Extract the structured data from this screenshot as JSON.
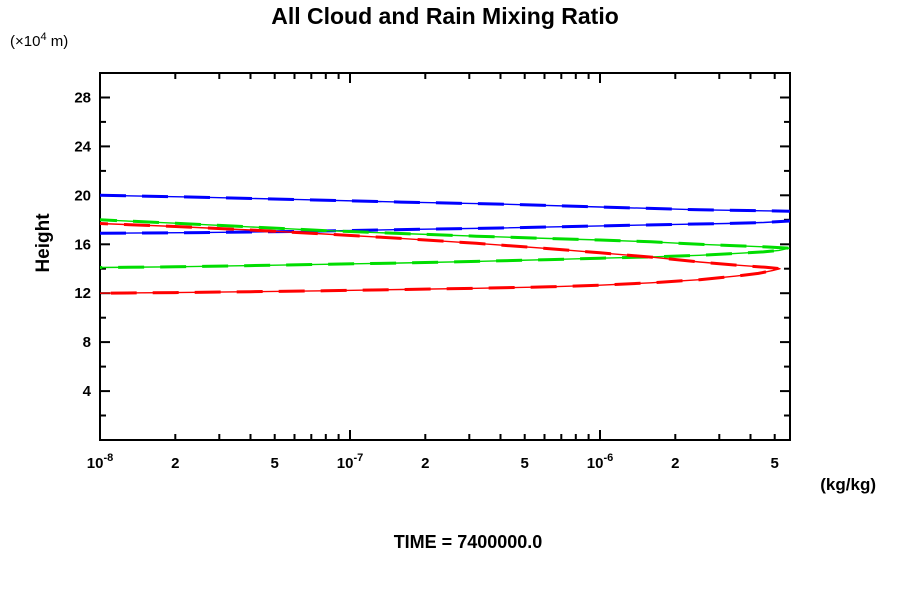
{
  "chart_data": {
    "type": "line",
    "title": "All Cloud and Rain Mixing Ratio",
    "ylabel": "Height",
    "y_units": {
      "base": "(×10",
      "sup": "4",
      "rest": " m)"
    },
    "xlabel": "(kg/kg)",
    "time_label": "TIME = 7400000.0",
    "x_scale": "log",
    "x_range_log10": [
      -8,
      -5.24
    ],
    "y_range": [
      0,
      30
    ],
    "grid": false,
    "legend": "none",
    "axis_color": "#000000",
    "x_ticks": [
      {
        "q": 1e-08,
        "label": "10",
        "sup": "-8",
        "major": true
      },
      {
        "q": 2e-08,
        "label": "2"
      },
      {
        "q": 3e-08
      },
      {
        "q": 4e-08
      },
      {
        "q": 5e-08,
        "label": "5"
      },
      {
        "q": 6e-08
      },
      {
        "q": 7e-08
      },
      {
        "q": 8e-08
      },
      {
        "q": 9e-08
      },
      {
        "q": 1e-07,
        "label": "10",
        "sup": "-7",
        "major": true
      },
      {
        "q": 2e-07,
        "label": "2"
      },
      {
        "q": 3e-07
      },
      {
        "q": 4e-07
      },
      {
        "q": 5e-07,
        "label": "5"
      },
      {
        "q": 6e-07
      },
      {
        "q": 7e-07
      },
      {
        "q": 8e-07
      },
      {
        "q": 9e-07
      },
      {
        "q": 1e-06,
        "label": "10",
        "sup": "-6",
        "major": true
      },
      {
        "q": 2e-06,
        "label": "2"
      },
      {
        "q": 3e-06
      },
      {
        "q": 4e-06
      },
      {
        "q": 5e-06,
        "label": "5"
      }
    ],
    "y_ticks": [
      {
        "v": 2
      },
      {
        "v": 4,
        "label": "4",
        "major": true
      },
      {
        "v": 6
      },
      {
        "v": 8,
        "label": "8",
        "major": true
      },
      {
        "v": 10
      },
      {
        "v": 12,
        "label": "12",
        "major": true
      },
      {
        "v": 14
      },
      {
        "v": 16,
        "label": "16",
        "major": true
      },
      {
        "v": 18
      },
      {
        "v": 20,
        "label": "20",
        "major": true
      },
      {
        "v": 22
      },
      {
        "v": 24,
        "label": "24",
        "major": true
      },
      {
        "v": 26
      },
      {
        "v": 28,
        "label": "28",
        "major": true
      }
    ],
    "series": [
      {
        "name": "blue",
        "color": "#0000ff",
        "note": "profile clipped at right axis edge",
        "branches": [
          [
            [
              1e-08,
              20.0
            ],
            [
              2.5e-08,
              19.85
            ],
            [
              6.3e-08,
              19.65
            ],
            [
              1.6e-07,
              19.45
            ],
            [
              4e-07,
              19.28
            ],
            [
              1e-06,
              19.05
            ],
            [
              2.5e-06,
              18.82
            ],
            [
              5.75e-06,
              18.7
            ]
          ],
          [
            [
              1e-08,
              16.9
            ],
            [
              2.5e-08,
              16.95
            ],
            [
              6.3e-08,
              17.05
            ],
            [
              1.6e-07,
              17.2
            ],
            [
              4e-07,
              17.33
            ],
            [
              1e-06,
              17.5
            ],
            [
              2e-06,
              17.62
            ],
            [
              3.2e-06,
              17.7
            ],
            [
              4.5e-06,
              17.78
            ],
            [
              5.75e-06,
              17.9
            ]
          ]
        ]
      },
      {
        "name": "green",
        "color": "#00dd00",
        "note": "nose at right edge ~5.7e-6 kg/kg, height 15.7",
        "branches": [
          [
            [
              1e-08,
              18.0
            ],
            [
              2e-08,
              17.72
            ],
            [
              4e-08,
              17.42
            ],
            [
              7.9e-08,
              17.12
            ],
            [
              1.6e-07,
              16.88
            ],
            [
              3.2e-07,
              16.66
            ],
            [
              6.3e-07,
              16.47
            ],
            [
              1e-06,
              16.35
            ],
            [
              1.6e-06,
              16.2
            ],
            [
              2.5e-06,
              16.0
            ],
            [
              3.5e-06,
              15.88
            ],
            [
              4.7e-06,
              15.78
            ],
            [
              5.7e-06,
              15.68
            ],
            [
              5.2e-06,
              15.5
            ],
            [
              4.5e-06,
              15.38
            ],
            [
              3.5e-06,
              15.25
            ],
            [
              2.5e-06,
              15.1
            ],
            [
              1.6e-06,
              14.97
            ],
            [
              1e-06,
              14.86
            ],
            [
              6.3e-07,
              14.75
            ],
            [
              3.2e-07,
              14.6
            ],
            [
              1.6e-07,
              14.47
            ],
            [
              7.9e-08,
              14.36
            ],
            [
              4e-08,
              14.26
            ],
            [
              2e-08,
              14.16
            ],
            [
              1e-08,
              14.1
            ]
          ]
        ]
      },
      {
        "name": "red",
        "color": "#ff0000",
        "note": "nose at ~5.25e-6 kg/kg, height 14.0",
        "branches": [
          [
            [
              1e-08,
              17.7
            ],
            [
              2e-08,
              17.45
            ],
            [
              4e-08,
              17.17
            ],
            [
              7.9e-08,
              16.84
            ],
            [
              1.6e-07,
              16.48
            ],
            [
              3.2e-07,
              16.08
            ],
            [
              6.3e-07,
              15.64
            ],
            [
              1e-06,
              15.3
            ],
            [
              1.6e-06,
              14.95
            ],
            [
              2.5e-06,
              14.55
            ],
            [
              3.5e-06,
              14.3
            ],
            [
              4.6e-06,
              14.12
            ],
            [
              5.25e-06,
              14.0
            ],
            [
              4.9e-06,
              13.85
            ],
            [
              4.3e-06,
              13.62
            ],
            [
              3.5e-06,
              13.4
            ],
            [
              2.5e-06,
              13.1
            ],
            [
              1.6e-06,
              12.85
            ],
            [
              1e-06,
              12.65
            ],
            [
              6.3e-07,
              12.52
            ],
            [
              3.2e-07,
              12.4
            ],
            [
              1.6e-07,
              12.3
            ],
            [
              7.9e-08,
              12.2
            ],
            [
              4e-08,
              12.12
            ],
            [
              2e-08,
              12.05
            ],
            [
              1e-08,
              12.0
            ]
          ]
        ]
      }
    ]
  }
}
